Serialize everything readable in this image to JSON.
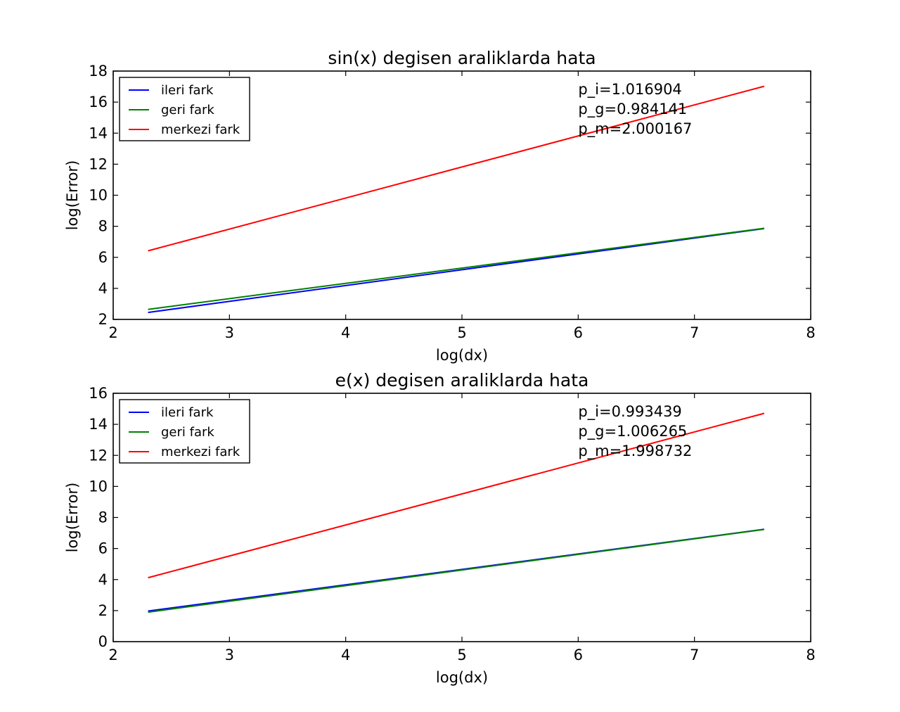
{
  "chart_data": [
    {
      "type": "line",
      "title": "sin(x) degisen araliklarda hata",
      "xlabel": "log(dx)",
      "ylabel": "log(Error)",
      "xlim": [
        2,
        8
      ],
      "ylim": [
        2,
        18
      ],
      "xticks": [
        2,
        3,
        4,
        5,
        6,
        7,
        8
      ],
      "yticks": [
        2,
        4,
        6,
        8,
        10,
        12,
        14,
        16,
        18
      ],
      "grid": false,
      "legend_position": "top-left",
      "series": [
        {
          "name": "ileri fark",
          "color": "#0000ff",
          "x": [
            2.3,
            7.6
          ],
          "y": [
            2.45,
            7.85
          ]
        },
        {
          "name": "geri fark",
          "color": "#008000",
          "x": [
            2.3,
            7.6
          ],
          "y": [
            2.65,
            7.87
          ]
        },
        {
          "name": "merkezi fark",
          "color": "#ff0000",
          "x": [
            2.3,
            7.6
          ],
          "y": [
            6.42,
            17.02
          ]
        }
      ],
      "annotations": [
        "p_i=1.016904",
        "p_g=0.984141",
        "p_m=2.000167"
      ]
    },
    {
      "type": "line",
      "title": "e(x) degisen araliklarda hata",
      "xlabel": "log(dx)",
      "ylabel": "log(Error)",
      "xlim": [
        2,
        8
      ],
      "ylim": [
        0,
        16
      ],
      "xticks": [
        2,
        3,
        4,
        5,
        6,
        7,
        8
      ],
      "yticks": [
        0,
        2,
        4,
        6,
        8,
        10,
        12,
        14,
        16
      ],
      "grid": false,
      "legend_position": "top-left",
      "series": [
        {
          "name": "ileri fark",
          "color": "#0000ff",
          "x": [
            2.3,
            7.6
          ],
          "y": [
            1.97,
            7.24
          ]
        },
        {
          "name": "geri fark",
          "color": "#008000",
          "x": [
            2.3,
            7.6
          ],
          "y": [
            1.9,
            7.23
          ]
        },
        {
          "name": "merkezi fark",
          "color": "#ff0000",
          "x": [
            2.3,
            7.6
          ],
          "y": [
            4.12,
            14.71
          ]
        }
      ],
      "annotations": [
        "p_i=0.993439",
        "p_g=1.006265",
        "p_m=1.998732"
      ]
    }
  ]
}
